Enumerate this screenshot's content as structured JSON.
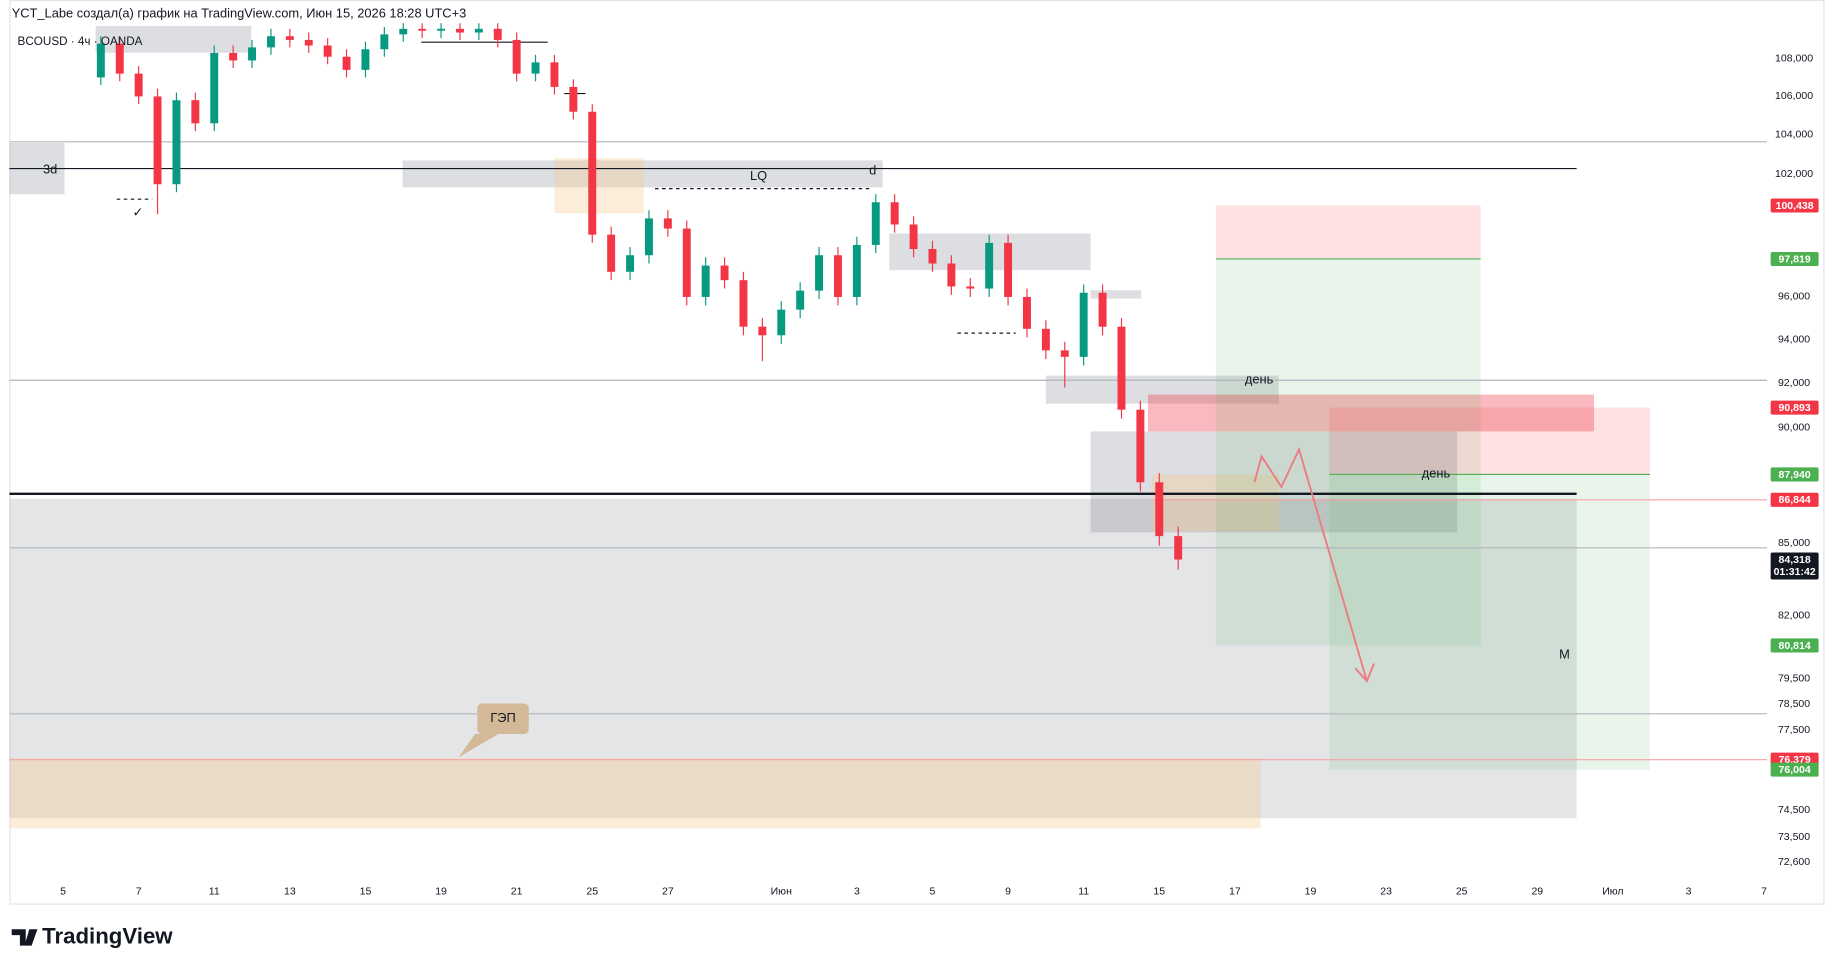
{
  "header": {
    "credit": "YCT_Labe создал(а) график на TradingView.com, Июн 15, 2026 18:28 UTC+3"
  },
  "footer": {
    "logo": "TradingView"
  },
  "chart_data": {
    "type": "candlestick",
    "symbol_line": "BCOUSD · 4ч · OANDA",
    "colors": {
      "up": "#089981",
      "down": "#f23645"
    },
    "x": [
      0.5,
      0.75,
      1,
      1.25,
      1.5,
      1.75,
      2,
      2.25,
      2.5,
      2.75,
      3,
      3.25,
      3.5,
      3.75,
      4,
      4.25,
      4.5,
      4.75,
      5,
      5.25,
      5.5,
      5.75,
      6,
      6.25,
      6.5,
      6.75,
      7,
      7.25,
      7.5,
      7.75,
      8,
      8.25,
      8.5,
      8.75,
      9,
      9.25,
      9.5,
      9.75,
      10,
      10.25,
      10.5,
      10.75,
      11,
      11.25,
      11.5,
      11.75,
      12,
      12.25,
      12.5,
      12.75,
      13,
      13.25,
      13.5,
      13.75,
      14,
      14.25,
      14.5,
      14.75
    ],
    "open": [
      107000,
      108800,
      107200,
      106000,
      101500,
      105800,
      104600,
      108300,
      107900,
      108600,
      109200,
      109000,
      108700,
      108100,
      107400,
      108500,
      109300,
      109600,
      109500,
      109600,
      109400,
      109600,
      109000,
      107200,
      107800,
      106500,
      105200,
      99000,
      97200,
      98000,
      99800,
      99300,
      96000,
      97500,
      96800,
      94600,
      94200,
      95400,
      96300,
      98000,
      96000,
      98500,
      100600,
      99500,
      98300,
      97600,
      96500,
      96400,
      98600,
      96000,
      94500,
      93500,
      93200,
      96200,
      94600,
      90800,
      87600,
      85300
    ],
    "high": [
      109200,
      109200,
      107600,
      106400,
      106200,
      106200,
      108700,
      108700,
      109000,
      109600,
      109600,
      109400,
      109100,
      108500,
      108900,
      109700,
      109900,
      109900,
      109900,
      109900,
      109900,
      109900,
      109400,
      108200,
      108200,
      106900,
      105600,
      99400,
      98400,
      100200,
      100200,
      99700,
      97900,
      97900,
      97200,
      95000,
      95800,
      96700,
      98400,
      98400,
      98900,
      101000,
      101000,
      99900,
      98700,
      98000,
      96900,
      99000,
      99000,
      96400,
      94900,
      93900,
      96600,
      96600,
      95000,
      91200,
      88000,
      85700
    ],
    "low": [
      106600,
      106800,
      105600,
      100000,
      101100,
      104200,
      104200,
      107500,
      107500,
      108200,
      108600,
      108300,
      107700,
      107000,
      107000,
      108100,
      108900,
      109100,
      109100,
      109000,
      109000,
      108600,
      106800,
      106800,
      106100,
      104800,
      98600,
      96800,
      96800,
      97600,
      98900,
      95600,
      95600,
      96400,
      94200,
      93000,
      93800,
      95000,
      95900,
      95600,
      95600,
      98100,
      99100,
      97900,
      97200,
      96100,
      96000,
      96000,
      95600,
      94100,
      93100,
      91800,
      92800,
      94200,
      90400,
      87200,
      84900,
      83900
    ],
    "close": [
      108800,
      107200,
      106000,
      101500,
      105800,
      104600,
      108300,
      107900,
      108600,
      109200,
      109000,
      108700,
      108100,
      107400,
      108500,
      109300,
      109600,
      109500,
      109600,
      109400,
      109600,
      109000,
      107200,
      107800,
      106500,
      105200,
      99000,
      97200,
      98000,
      99800,
      99300,
      96000,
      97500,
      96800,
      94600,
      94200,
      95400,
      96300,
      98000,
      96000,
      98500,
      100600,
      99500,
      98300,
      97600,
      96500,
      96400,
      98600,
      96000,
      94500,
      93500,
      93200,
      96200,
      94600,
      90800,
      87600,
      85300,
      84318
    ],
    "xlim": [
      -0.71,
      22.54
    ],
    "xticks": [
      {
        "value": 0,
        "label": "5"
      },
      {
        "value": 1,
        "label": "7"
      },
      {
        "value": 2,
        "label": "11"
      },
      {
        "value": 3,
        "label": "13"
      },
      {
        "value": 4,
        "label": "15"
      },
      {
        "value": 5,
        "label": "19"
      },
      {
        "value": 6,
        "label": "21"
      },
      {
        "value": 7,
        "label": "25"
      },
      {
        "value": 8,
        "label": "27"
      },
      {
        "value": 9.5,
        "label": "Июн"
      },
      {
        "value": 10.5,
        "label": "3"
      },
      {
        "value": 11.5,
        "label": "5"
      },
      {
        "value": 12.5,
        "label": "9"
      },
      {
        "value": 13.5,
        "label": "11"
      },
      {
        "value": 14.5,
        "label": "15"
      },
      {
        "value": 15.5,
        "label": "17"
      },
      {
        "value": 16.5,
        "label": "19"
      },
      {
        "value": 17.5,
        "label": "23"
      },
      {
        "value": 18.5,
        "label": "25"
      },
      {
        "value": 19.5,
        "label": "29"
      },
      {
        "value": 20.5,
        "label": "Июл"
      },
      {
        "value": 21.5,
        "label": "3"
      },
      {
        "value": 22.5,
        "label": "7"
      }
    ],
    "ylim": [
      71140,
      110020
    ],
    "log_scale": true,
    "grid": false,
    "yticks": [
      {
        "value": 108000,
        "label": "108,000"
      },
      {
        "value": 106000,
        "label": "106,000"
      },
      {
        "value": 104000,
        "label": "104,000"
      },
      {
        "value": 102000,
        "label": "102,000"
      },
      {
        "value": 96000,
        "label": "96,000"
      },
      {
        "value": 94000,
        "label": "94,000"
      },
      {
        "value": 92000,
        "label": "92,000"
      },
      {
        "value": 90000,
        "label": "90,000"
      },
      {
        "value": 85000,
        "label": "85,000"
      },
      {
        "value": 82000,
        "label": "82,000"
      },
      {
        "value": 79500,
        "label": "79,500"
      },
      {
        "value": 78500,
        "label": "78,500"
      },
      {
        "value": 77500,
        "label": "77,500"
      },
      {
        "value": 74500,
        "label": "74,500"
      },
      {
        "value": 73500,
        "label": "73,500"
      },
      {
        "value": 72600,
        "label": "72,600"
      }
    ],
    "zones": [
      {
        "x": [
          -0.71,
          0.02
        ],
        "y": [
          103590,
          101000
        ],
        "color": "#787b8640"
      },
      {
        "x": [
          0.43,
          2.49
        ],
        "y": [
          109760,
          108310
        ],
        "color": "#787b8640"
      },
      {
        "x": [
          4.49,
          10.84
        ],
        "y": [
          102700,
          101340
        ],
        "color": "#787b8640"
      },
      {
        "x": [
          6.5,
          7.68
        ],
        "y": [
          102820,
          100060
        ],
        "color": "#f7c98b55"
      },
      {
        "x": [
          10.93,
          13.59
        ],
        "y": [
          99060,
          97280
        ],
        "color": "#787b8640"
      },
      {
        "x": [
          13.59,
          14.26
        ],
        "y": [
          96320,
          95920
        ],
        "color": "#787b8640"
      },
      {
        "x": [
          13.0,
          16.08
        ],
        "y": [
          92340,
          91070
        ],
        "color": "#787b8640"
      },
      {
        "x": [
          -0.71,
          20.02
        ],
        "y": [
          86890,
          74200
        ],
        "color": "#787b8633"
      },
      {
        "x": [
          13.59,
          18.44
        ],
        "y": [
          89830,
          85460
        ],
        "color": "#787b8640"
      },
      {
        "x": [
          14.41,
          16.08
        ],
        "y": [
          87920,
          85510
        ],
        "color": "#f7c98b55"
      },
      {
        "x": [
          -0.71,
          15.84
        ],
        "y": [
          76430,
          73830
        ],
        "color": "#f7c98b55"
      },
      {
        "x": [
          14.35,
          20.25
        ],
        "y": [
          91480,
          89830
        ],
        "color": "#f2364559"
      }
    ],
    "levels": [
      {
        "value": 103650,
        "x": [
          -0.71,
          22.54
        ],
        "color": "#b2b5be",
        "style": "thin"
      },
      {
        "value": 102290,
        "x": [
          -0.71,
          20.02
        ],
        "color": "#131722",
        "style": "thin"
      },
      {
        "value": 92130,
        "x": [
          -0.71,
          22.54
        ],
        "color": "#b2b5be",
        "style": "thin"
      },
      {
        "value": 87100,
        "x": [
          -0.71,
          20.02
        ],
        "color": "#131722",
        "style": "thick"
      },
      {
        "value": 84810,
        "x": [
          -0.71,
          22.54
        ],
        "color": "#b2b5be",
        "style": "thin"
      },
      {
        "value": 78130,
        "x": [
          -0.71,
          22.54
        ],
        "color": "#b2b5be",
        "style": "thin"
      },
      {
        "value": 86844,
        "x": [
          14.41,
          22.54
        ],
        "color": "#f7a1a8",
        "style": "thin"
      },
      {
        "value": 76379,
        "x": [
          -0.71,
          22.54
        ],
        "color": "#f7a1a8",
        "style": "thin"
      },
      {
        "value": 108880,
        "x": [
          4.74,
          6.41
        ],
        "color": "#131722",
        "style": "thin"
      },
      {
        "value": 106150,
        "x": [
          6.63,
          6.91
        ],
        "color": "#131722",
        "style": "thin"
      },
      {
        "value": 101280,
        "x": [
          7.83,
          10.7
        ],
        "color": "#131722",
        "style": "dashed"
      },
      {
        "value": 94300,
        "x": [
          11.83,
          12.6
        ],
        "color": "#131722",
        "style": "dashed"
      },
      {
        "value": 100750,
        "x": [
          0.71,
          1.18
        ],
        "color": "#131722",
        "style": "dashed"
      }
    ],
    "positions": [
      {
        "x": [
          15.25,
          18.75
        ],
        "stop": 100438,
        "entry": 97819,
        "target": 80814
      },
      {
        "x": [
          16.75,
          20.99
        ],
        "stop": 90893,
        "entry": 87940,
        "target": 76004
      }
    ],
    "annotations": [
      {
        "text": "3d",
        "x": -0.17,
        "price": 102220
      },
      {
        "text": "LQ",
        "x": 9.2,
        "price": 101880
      },
      {
        "text": "d",
        "x": 10.71,
        "price": 102150
      },
      {
        "text": "день",
        "x": 15.82,
        "price": 92130
      },
      {
        "text": "день",
        "x": 18.16,
        "price": 87960
      },
      {
        "text": "M",
        "x": 19.86,
        "price": 80420
      },
      {
        "text": "✓",
        "x": 0.99,
        "price": 100060
      },
      {
        "text": "ГЭП",
        "x": 5.82,
        "price": 77940,
        "style": "callout"
      }
    ],
    "price_tags": [
      {
        "value": 100438,
        "label": "100,438",
        "color": "#f23645"
      },
      {
        "value": 97819,
        "label": "97,819",
        "color": "#4caf50"
      },
      {
        "value": 90893,
        "label": "90,893",
        "color": "#f23645"
      },
      {
        "value": 87940,
        "label": "87,940",
        "color": "#4caf50"
      },
      {
        "value": 86844,
        "label": "86,844",
        "color": "#f23645"
      },
      {
        "value": 84318,
        "label": "84,318",
        "countdown": "01:31:42",
        "color": "#131722"
      },
      {
        "value": 80814,
        "label": "80,814",
        "color": "#4caf50"
      },
      {
        "value": 76379,
        "label": "76,379",
        "color": "#f23645"
      },
      {
        "value": 76004,
        "label": "76,004",
        "color": "#4caf50"
      }
    ]
  }
}
